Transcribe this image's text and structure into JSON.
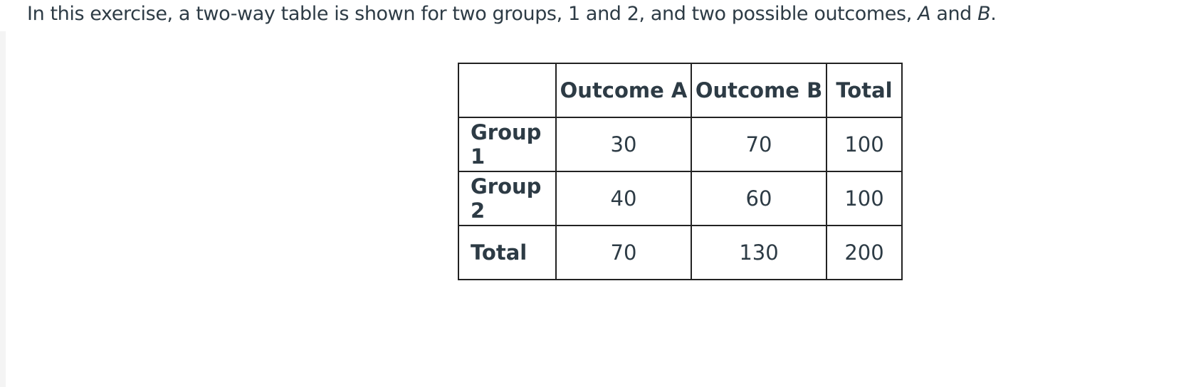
{
  "intro": {
    "parts": [
      "In this exercise, a two-way table is shown for two groups, 1 and 2, and two possible outcomes, ",
      "A",
      " and ",
      "B",
      "."
    ]
  },
  "table": {
    "header": [
      "Outcome A",
      "Outcome B",
      "Total"
    ],
    "rows": [
      [
        "Group 1",
        30,
        70,
        100
      ],
      [
        "Group 2",
        40,
        60,
        100
      ],
      [
        "Total",
        70,
        130,
        200
      ]
    ]
  }
}
